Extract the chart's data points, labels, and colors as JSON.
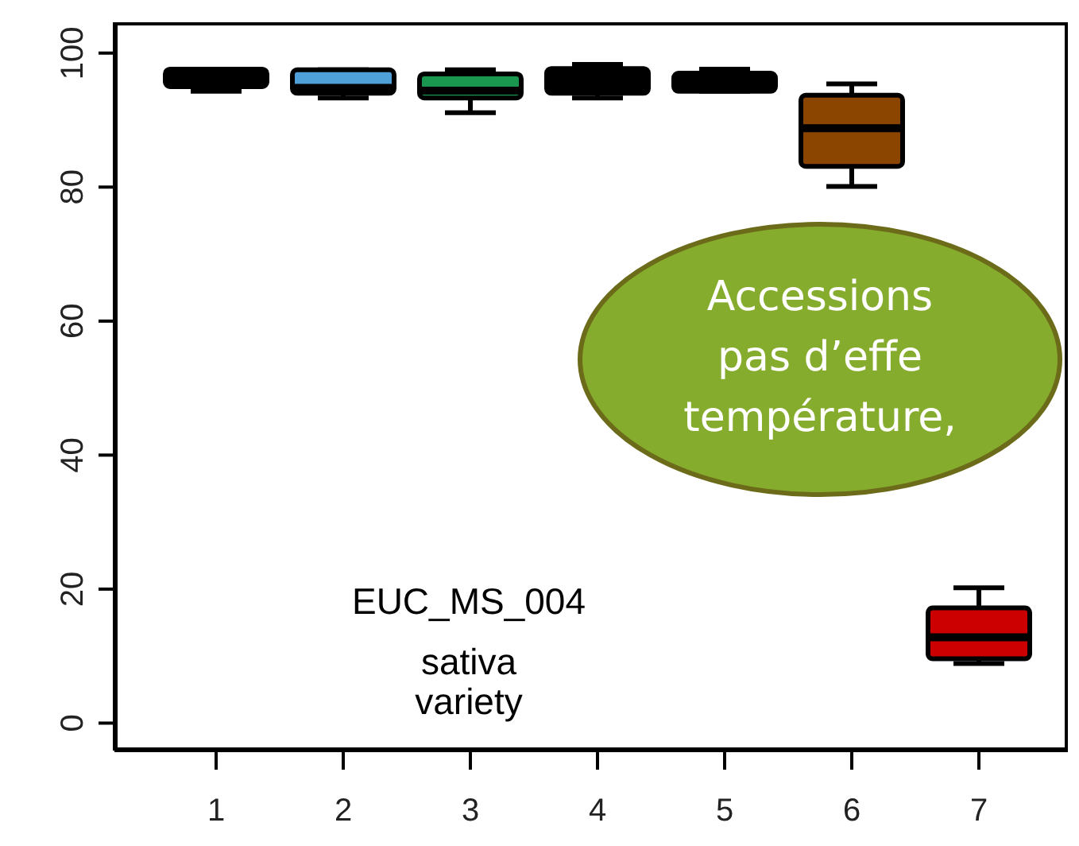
{
  "chart_data": {
    "type": "box",
    "categories": [
      "1",
      "2",
      "3",
      "4",
      "5",
      "6",
      "7"
    ],
    "boxes": [
      {
        "low": 94.3,
        "q1": 95.0,
        "median": 96.0,
        "q3": 97.6,
        "high": 97.6
      },
      {
        "low": 93.3,
        "q1": 94.0,
        "median": 94.8,
        "q3": 97.5,
        "high": 97.5
      },
      {
        "low": 91.1,
        "q1": 93.3,
        "median": 94.4,
        "q3": 96.9,
        "high": 97.5
      },
      {
        "low": 93.3,
        "q1": 94.0,
        "median": 96.0,
        "q3": 97.7,
        "high": 98.3
      },
      {
        "low": 94.3,
        "q1": 94.3,
        "median": 95.7,
        "q3": 97.0,
        "high": 97.6
      },
      {
        "low": 80.1,
        "q1": 83.1,
        "median": 88.8,
        "q3": 93.7,
        "high": 95.4
      },
      {
        "low": 8.9,
        "q1": 9.6,
        "median": 12.8,
        "q3": 17.2,
        "high": 20.2
      }
    ],
    "colors": [
      "#000000",
      "#4f9fd8",
      "#1a9850",
      "#000000",
      "#000000",
      "#8b4500",
      "#cc0000"
    ],
    "ylim": [
      -4.1,
      104.6
    ],
    "yticks": [
      0,
      20,
      40,
      60,
      80,
      100
    ],
    "annotations": [
      "EUC_MS_004",
      "sativa",
      "variety",
      "Accessions\npas d’effe\ntempérature,"
    ]
  }
}
